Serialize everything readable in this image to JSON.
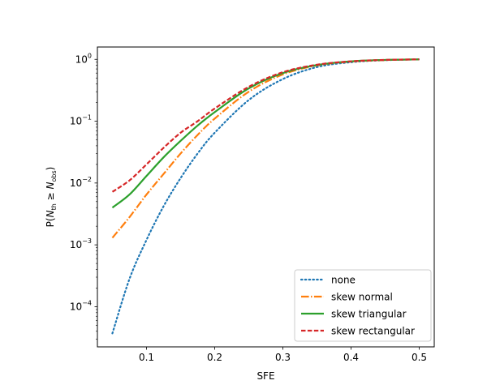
{
  "chart_data": {
    "type": "line",
    "title": "",
    "xlabel": "SFE",
    "ylabel": "P(N_th ≥ N_obs)",
    "ylabel_parts": {
      "prefix": "P(",
      "n1": "N",
      "sub1": "th",
      "rel": " ≥ ",
      "n2": "N",
      "sub2": "obs",
      "suffix": ")"
    },
    "xlim": [
      0.028,
      0.522
    ],
    "ylim_log10": [
      -4.65,
      0.2
    ],
    "yscale": "log",
    "grid": false,
    "legend_position": "lower-right",
    "x_ticks": [
      {
        "value": 0.1,
        "label": "0.1"
      },
      {
        "value": 0.2,
        "label": "0.2"
      },
      {
        "value": 0.3,
        "label": "0.3"
      },
      {
        "value": 0.4,
        "label": "0.4"
      },
      {
        "value": 0.5,
        "label": "0.5"
      }
    ],
    "y_ticks": [
      {
        "exp": -4,
        "label_base": "10",
        "label_exp": "−4"
      },
      {
        "exp": -3,
        "label_base": "10",
        "label_exp": "−3"
      },
      {
        "exp": -2,
        "label_base": "10",
        "label_exp": "−2"
      },
      {
        "exp": -1,
        "label_base": "10",
        "label_exp": "−1"
      },
      {
        "exp": 0,
        "label_base": "10",
        "label_exp": "0"
      }
    ],
    "x": [
      0.05,
      0.075,
      0.1,
      0.125,
      0.15,
      0.175,
      0.2,
      0.25,
      0.3,
      0.35,
      0.4,
      0.45,
      0.5
    ],
    "series": [
      {
        "name": "none",
        "color": "#1f77b4",
        "dash": "dotted",
        "values": [
          3.7e-05,
          0.00028,
          0.0012,
          0.0042,
          0.012,
          0.03,
          0.065,
          0.22,
          0.48,
          0.75,
          0.9,
          0.97,
          1.0
        ]
      },
      {
        "name": "skew normal",
        "color": "#ff7f0e",
        "dash": "dashdot",
        "values": [
          0.0013,
          0.0028,
          0.0065,
          0.014,
          0.03,
          0.06,
          0.11,
          0.3,
          0.57,
          0.8,
          0.92,
          0.975,
          1.0
        ]
      },
      {
        "name": "skew triangular",
        "color": "#2ca02c",
        "dash": "solid",
        "values": [
          0.004,
          0.0065,
          0.013,
          0.026,
          0.048,
          0.085,
          0.14,
          0.34,
          0.6,
          0.81,
          0.93,
          0.98,
          1.0
        ]
      },
      {
        "name": "skew rectangular",
        "color": "#d62728",
        "dash": "dashed",
        "values": [
          0.0072,
          0.011,
          0.02,
          0.037,
          0.065,
          0.1,
          0.16,
          0.36,
          0.62,
          0.82,
          0.93,
          0.98,
          1.0
        ]
      }
    ]
  }
}
